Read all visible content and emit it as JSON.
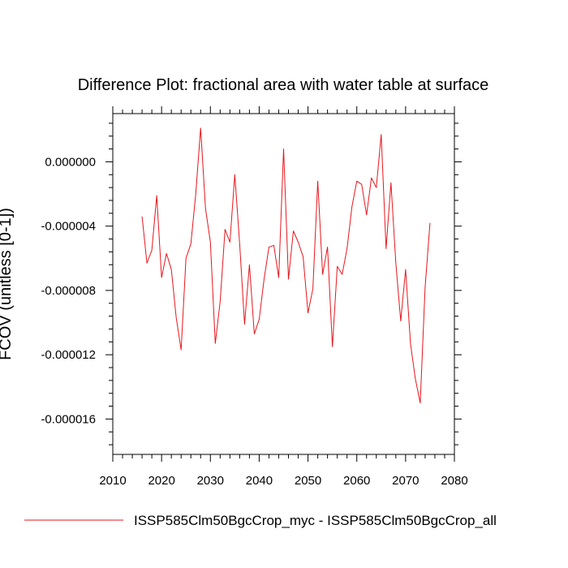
{
  "chart_data": {
    "type": "line",
    "title": "Difference Plot: fractional area with water table at surface",
    "ylabel": "FCOV  (unitless [0-1])",
    "xlabel": "",
    "xlim": [
      2010,
      2080
    ],
    "ylim": [
      -1.82e-05,
      3e-06
    ],
    "x_ticks": [
      2010,
      2020,
      2030,
      2040,
      2050,
      2060,
      2070,
      2080
    ],
    "x_tick_labels": [
      "2010",
      "2020",
      "2030",
      "2040",
      "2050",
      "2060",
      "2070",
      "2080"
    ],
    "y_ticks": [
      0.0,
      -4e-06,
      -8e-06,
      -1.2e-05,
      -1.6e-05
    ],
    "y_tick_labels": [
      "0.000000",
      "-0.000004",
      "-0.000008",
      "-0.000012",
      "-0.000016"
    ],
    "grid": false,
    "legend_position": "bottom",
    "series": [
      {
        "name": "ISSP585Clm50BgcCrop_myc - ISSP585Clm50BgcCrop_all",
        "color": "#e8161c",
        "x": [
          2016,
          2017,
          2018,
          2019,
          2020,
          2021,
          2022,
          2023,
          2024,
          2025,
          2026,
          2027,
          2028,
          2029,
          2030,
          2031,
          2032,
          2033,
          2034,
          2035,
          2036,
          2037,
          2038,
          2039,
          2040,
          2041,
          2042,
          2043,
          2044,
          2045,
          2046,
          2047,
          2048,
          2049,
          2050,
          2051,
          2052,
          2053,
          2054,
          2055,
          2056,
          2057,
          2058,
          2059,
          2060,
          2061,
          2062,
          2063,
          2064,
          2065,
          2066,
          2067,
          2068,
          2069,
          2070,
          2071,
          2072,
          2073,
          2074,
          2075
        ],
        "y": [
          -3.4e-06,
          -6.3e-06,
          -5.5e-06,
          -2.1e-06,
          -7.2e-06,
          -5.7e-06,
          -6.7e-06,
          -9.7e-06,
          -1.17e-05,
          -6e-06,
          -5.1e-06,
          -2e-06,
          2.1e-06,
          -2.9e-06,
          -5e-06,
          -1.13e-05,
          -8.7e-06,
          -4.2e-06,
          -5e-06,
          -8e-07,
          -5.1e-06,
          -1.01e-05,
          -6.4e-06,
          -1.07e-05,
          -9.8e-06,
          -7.3e-06,
          -5.3e-06,
          -5.2e-06,
          -7.2e-06,
          8e-07,
          -7.3e-06,
          -4.3e-06,
          -5e-06,
          -5.9e-06,
          -9.4e-06,
          -7.9e-06,
          -1.2e-06,
          -7e-06,
          -5.3e-06,
          -1.15e-05,
          -6.5e-06,
          -7e-06,
          -5.4e-06,
          -2.8e-06,
          -1.2e-06,
          -1.4e-06,
          -3.3e-06,
          -1e-06,
          -1.6e-06,
          1.7e-06,
          -5.4e-06,
          -1.3e-06,
          -6.3e-06,
          -9.9e-06,
          -6.7e-06,
          -1.13e-05,
          -1.35e-05,
          -1.5e-05,
          -7.8e-06,
          -3.8e-06
        ]
      }
    ]
  }
}
